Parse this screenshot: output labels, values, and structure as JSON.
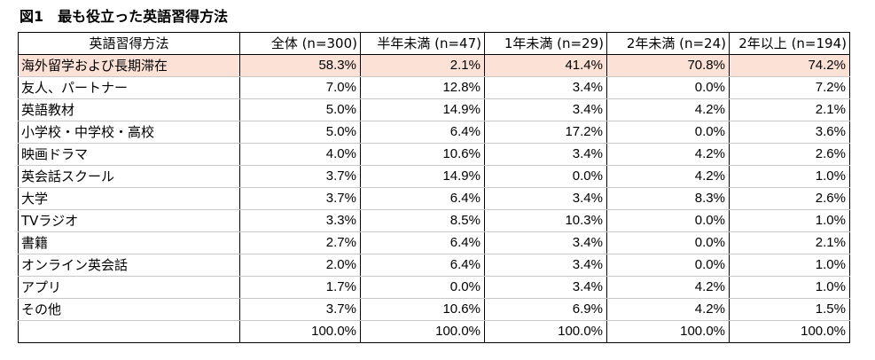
{
  "title": "図1　最も役立った英語習得方法",
  "table": {
    "headers": [
      "英語習得方法",
      "全体 (n=300)",
      "半年未満 (n=47)",
      "1年未満 (n=29)",
      "2年未満 (n=24)",
      "2年以上 (n=194)"
    ],
    "rows": [
      {
        "label": "海外留学および長期滞在",
        "values": [
          "58.3%",
          "2.1%",
          "41.4%",
          "70.8%",
          "74.2%"
        ],
        "highlight": true
      },
      {
        "label": "友人、パートナー",
        "values": [
          "7.0%",
          "12.8%",
          "3.4%",
          "0.0%",
          "7.2%"
        ]
      },
      {
        "label": "英語教材",
        "values": [
          "5.0%",
          "14.9%",
          "3.4%",
          "4.2%",
          "2.1%"
        ]
      },
      {
        "label": "小学校・中学校・高校",
        "values": [
          "5.0%",
          "6.4%",
          "17.2%",
          "0.0%",
          "3.6%"
        ]
      },
      {
        "label": "映画ドラマ",
        "values": [
          "4.0%",
          "10.6%",
          "3.4%",
          "4.2%",
          "2.6%"
        ]
      },
      {
        "label": "英会話スクール",
        "values": [
          "3.7%",
          "14.9%",
          "0.0%",
          "4.2%",
          "1.0%"
        ]
      },
      {
        "label": "大学",
        "values": [
          "3.7%",
          "6.4%",
          "3.4%",
          "8.3%",
          "2.6%"
        ]
      },
      {
        "label": "TVラジオ",
        "values": [
          "3.3%",
          "8.5%",
          "10.3%",
          "0.0%",
          "1.0%"
        ]
      },
      {
        "label": "書籍",
        "values": [
          "2.7%",
          "6.4%",
          "3.4%",
          "0.0%",
          "2.1%"
        ]
      },
      {
        "label": "オンライン英会話",
        "values": [
          "2.0%",
          "6.4%",
          "3.4%",
          "0.0%",
          "1.0%"
        ]
      },
      {
        "label": "アプリ",
        "values": [
          "1.7%",
          "0.0%",
          "3.4%",
          "4.2%",
          "1.0%"
        ]
      },
      {
        "label": "その他",
        "values": [
          "3.7%",
          "10.6%",
          "6.9%",
          "4.2%",
          "1.5%"
        ]
      }
    ],
    "total": {
      "label": "",
      "values": [
        "100.0%",
        "100.0%",
        "100.0%",
        "100.0%",
        "100.0%"
      ]
    }
  },
  "colors": {
    "highlight_row": "#fbe1d6",
    "border": "#000000",
    "grid_line": "#c8c8c8"
  }
}
